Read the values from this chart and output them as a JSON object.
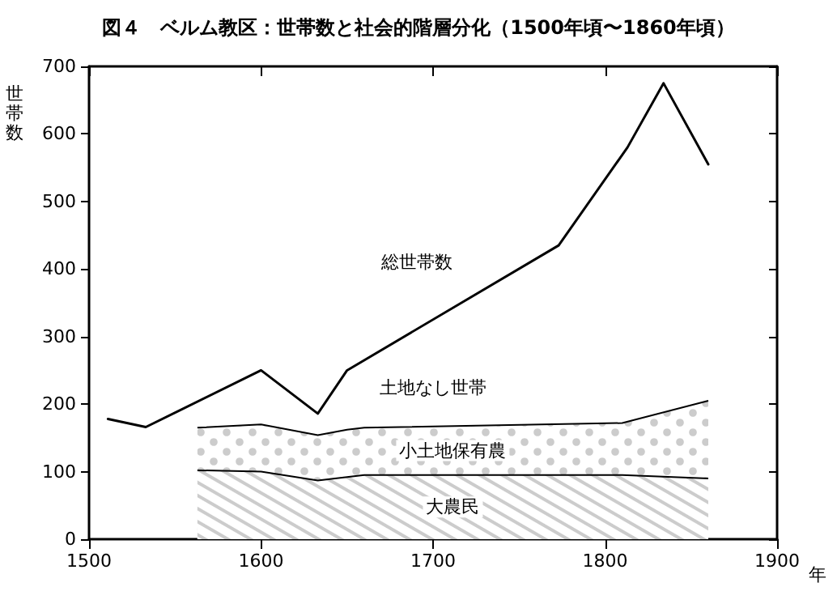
{
  "chart_data": {
    "type": "area",
    "title": "図４　ベルム教区：世帯数と社会的階層分化（1500年頃〜1860年頃）",
    "xlabel": "年",
    "ylabel": "世帯数",
    "stacked": true,
    "series": [
      {
        "name": "大農民",
        "color": "#000000",
        "x": [
          1563,
          1600,
          1633,
          1650,
          1660,
          1810,
          1860
        ],
        "values": [
          102,
          100,
          87,
          92,
          95,
          95,
          90
        ]
      },
      {
        "name": "小土地保有農",
        "color": "#000000",
        "x": [
          1563,
          1600,
          1633,
          1650,
          1660,
          1810,
          1860
        ],
        "values": [
          63,
          70,
          67,
          70,
          70,
          77,
          115
        ]
      },
      {
        "name": "総世帯数",
        "type": "line",
        "color": "#000000",
        "x": [
          1511,
          1533,
          1600,
          1633,
          1650,
          1773,
          1813,
          1834,
          1860
        ],
        "values": [
          178,
          166,
          250,
          186,
          250,
          435,
          580,
          675,
          555
        ]
      }
    ],
    "annotations": [
      "土地なし世帯"
    ],
    "xlim": [
      1500,
      1900
    ],
    "xticks": [
      1500,
      1600,
      1700,
      1800,
      1900
    ],
    "ylim": [
      0,
      700
    ],
    "yticks": [
      0,
      100,
      200,
      300,
      400,
      500,
      600,
      700
    ],
    "grid": false,
    "legend": false,
    "marker": "none",
    "line_style": "solid"
  }
}
